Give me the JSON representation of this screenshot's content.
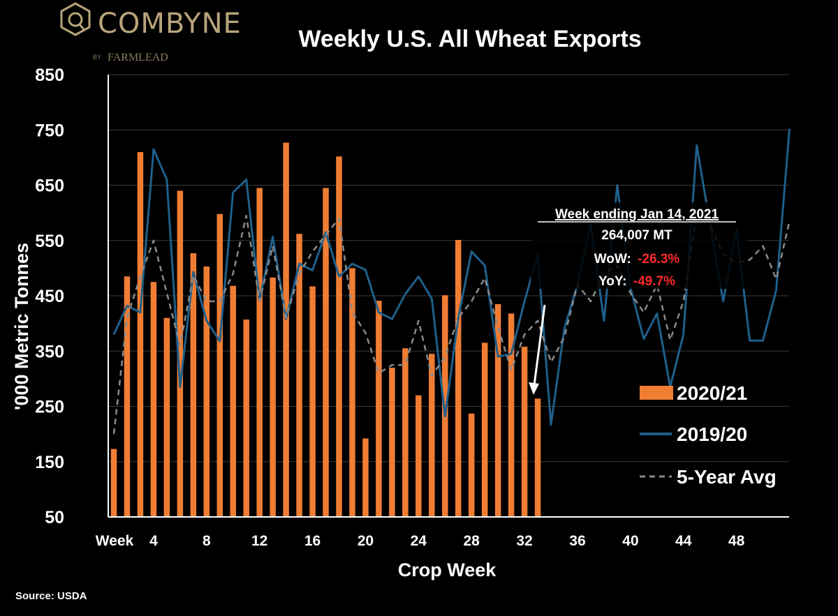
{
  "brand": {
    "name": "COMBYNE",
    "byline_by": "BY",
    "byline_name": "FARMLEAD",
    "color": "#b8a47a"
  },
  "source": "Source: USDA",
  "annotation": {
    "heading": "Week ending Jan 14, 2021",
    "volume": "264,007 MT",
    "wow_label": "WoW:",
    "wow_value": "-26.3%",
    "yoy_label": "YoY:",
    "yoy_value": "-49.7%",
    "negative_color": "#ff2a2a"
  },
  "chart_data": {
    "type": "bar",
    "title": "Weekly U.S. All Wheat  Exports",
    "xlabel": "Crop Week",
    "ylabel": "'000 Metric Tonnes",
    "ylim": [
      50,
      850
    ],
    "yticks": [
      50,
      150,
      250,
      350,
      450,
      550,
      650,
      750,
      850
    ],
    "xlim": [
      1,
      52
    ],
    "xticks": [
      {
        "week": 1,
        "label": "Week"
      },
      {
        "week": 4,
        "label": "4"
      },
      {
        "week": 8,
        "label": "8"
      },
      {
        "week": 12,
        "label": "12"
      },
      {
        "week": 16,
        "label": "16"
      },
      {
        "week": 20,
        "label": "20"
      },
      {
        "week": 24,
        "label": "24"
      },
      {
        "week": 28,
        "label": "28"
      },
      {
        "week": 32,
        "label": "32"
      },
      {
        "week": 36,
        "label": "36"
      },
      {
        "week": 40,
        "label": "40"
      },
      {
        "week": 44,
        "label": "44"
      },
      {
        "week": 48,
        "label": "48"
      }
    ],
    "grid": true,
    "legend_position": "bottom-right",
    "colors": {
      "bar": "#f07d34",
      "line_2019": "#1f5f8b",
      "avg": "#8a8a8a",
      "grid": "#3a3a3a",
      "axis": "#ffffff"
    },
    "series": [
      {
        "name": "2020/21",
        "type": "bar",
        "values": [
          173,
          485,
          710,
          475,
          410,
          640,
          527,
          503,
          598,
          468,
          407,
          645,
          483,
          727,
          562,
          467,
          645,
          702,
          500,
          192,
          441,
          320,
          355,
          270,
          345,
          451,
          551,
          237,
          365,
          435,
          418,
          358,
          264
        ]
      },
      {
        "name": "2019/20",
        "type": "line",
        "values": [
          380,
          432,
          420,
          715,
          660,
          285,
          493,
          405,
          368,
          637,
          660,
          442,
          557,
          408,
          508,
          496,
          565,
          485,
          508,
          497,
          420,
          408,
          453,
          485,
          445,
          232,
          410,
          530,
          505,
          340,
          345,
          440,
          525,
          217,
          390,
          470,
          580,
          405,
          650,
          465,
          372,
          418,
          285,
          380,
          722,
          580,
          440,
          570,
          369,
          369,
          460,
          752
        ]
      },
      {
        "name": "5-Year Avg",
        "type": "line",
        "dashed": true,
        "values": [
          200,
          410,
          485,
          550,
          455,
          360,
          487,
          440,
          440,
          490,
          595,
          440,
          540,
          410,
          490,
          530,
          560,
          590,
          420,
          383,
          310,
          325,
          325,
          405,
          305,
          340,
          410,
          440,
          482,
          393,
          316,
          380,
          405,
          330,
          375,
          470,
          440,
          490,
          505,
          455,
          420,
          470,
          370,
          440,
          600,
          580,
          525,
          510,
          515,
          540,
          480,
          585
        ]
      }
    ]
  }
}
